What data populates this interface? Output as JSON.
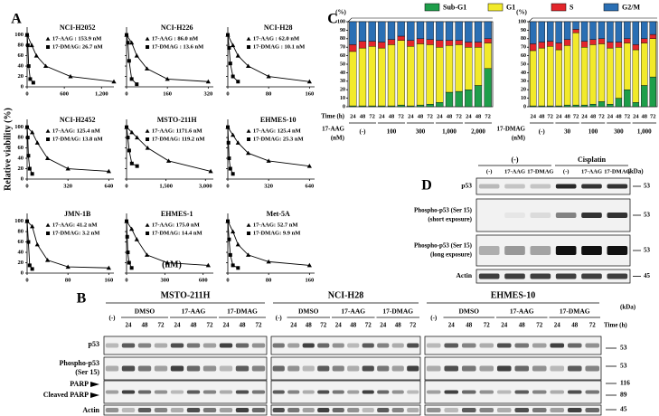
{
  "panel_a": {
    "label": "A",
    "ylabel": "Relative viability (%)",
    "xlabel": "(nM)",
    "ylim": [
      0,
      115
    ],
    "yticks": [
      0,
      20,
      40,
      60,
      80,
      100
    ],
    "charts": [
      {
        "type": "line",
        "title": "NCI-H2052",
        "xlim": [
          0,
          1400
        ],
        "xticks": [
          0,
          600,
          {
            "value": 1200,
            "label": "1,200"
          }
        ],
        "series": [
          {
            "label": "17-AAG : 153.9 nM",
            "marker": "triangle",
            "color": "#000000",
            "x": [
              0,
              75,
              150,
              300,
              700,
              1400
            ],
            "y": [
              100,
              80,
              60,
              40,
              20,
              10
            ]
          },
          {
            "label": "17-DMAG: 26.7 nM",
            "marker": "square",
            "color": "#000000",
            "x": [
              0,
              12,
              25,
              50,
              100
            ],
            "y": [
              100,
              80,
              40,
              15,
              8
            ]
          }
        ]
      },
      {
        "type": "line",
        "title": "NCI-H226",
        "xlim": [
          0,
          340
        ],
        "xticks": [
          0,
          160,
          320
        ],
        "series": [
          {
            "label": "17-AAG : 86.0 nM",
            "marker": "triangle",
            "color": "#000000",
            "x": [
              0,
              20,
              40,
              80,
              160,
              320
            ],
            "y": [
              100,
              85,
              60,
              35,
              15,
              10
            ]
          },
          {
            "label": "17-DMAG : 13.6 nM",
            "marker": "square",
            "color": "#000000",
            "x": [
              0,
              5,
              10,
              20,
              40
            ],
            "y": [
              100,
              85,
              50,
              15,
              5
            ]
          }
        ]
      },
      {
        "type": "line",
        "title": "NCI-H28",
        "xlim": [
          0,
          170
        ],
        "xticks": [
          0,
          80,
          160
        ],
        "series": [
          {
            "label": "17-AAG : 62.0 nM",
            "marker": "triangle",
            "color": "#000000",
            "x": [
              0,
              10,
              20,
              40,
              80,
              160
            ],
            "y": [
              100,
              80,
              60,
              40,
              20,
              10
            ]
          },
          {
            "label": "17-DMAG : 10.1 nM",
            "marker": "square",
            "color": "#000000",
            "x": [
              0,
              2.5,
              5,
              10,
              20
            ],
            "y": [
              100,
              75,
              45,
              20,
              10
            ]
          }
        ]
      },
      {
        "type": "line",
        "title": "NCI-H2452",
        "xlim": [
          0,
          680
        ],
        "xticks": [
          0,
          320,
          640
        ],
        "series": [
          {
            "label": "17-AAG: 125.4 nM",
            "marker": "triangle",
            "color": "#000000",
            "x": [
              0,
              40,
              80,
              160,
              320,
              640
            ],
            "y": [
              100,
              90,
              70,
              40,
              20,
              15
            ]
          },
          {
            "label": "17-DMAG: 13.8 nM",
            "marker": "square",
            "color": "#000000",
            "x": [
              0,
              5,
              10,
              20,
              40
            ],
            "y": [
              100,
              80,
              45,
              20,
              10
            ]
          }
        ]
      },
      {
        "type": "line",
        "title": "MSTO-211H",
        "xlim": [
          0,
          3300
        ],
        "xticks": [
          0,
          {
            "value": 1500,
            "label": "1,500"
          },
          {
            "value": 3000,
            "label": "3,000"
          }
        ],
        "series": [
          {
            "label": "17-AAG: 1171.6 nM",
            "marker": "triangle",
            "color": "#000000",
            "x": [
              0,
              200,
              400,
              800,
              1600,
              3200
            ],
            "y": [
              100,
              90,
              80,
              60,
              35,
              15
            ]
          },
          {
            "label": "17-DMAG: 119.2 nM",
            "marker": "square",
            "color": "#000000",
            "x": [
              0,
              50,
              100,
              200,
              400
            ],
            "y": [
              100,
              80,
              55,
              30,
              25
            ]
          }
        ]
      },
      {
        "type": "line",
        "title": "EHMES-10",
        "xlim": [
          0,
          680
        ],
        "xticks": [
          0,
          320,
          640
        ],
        "series": [
          {
            "label": "17-AAG: 125.4 nM",
            "marker": "triangle",
            "color": "#000000",
            "x": [
              0,
              40,
              80,
              160,
              320,
              640
            ],
            "y": [
              100,
              85,
              70,
              50,
              35,
              25
            ]
          },
          {
            "label": "17-DMAG: 25.3 nM",
            "marker": "square",
            "color": "#000000",
            "x": [
              0,
              5,
              10,
              20,
              40
            ],
            "y": [
              100,
              70,
              40,
              20,
              10
            ]
          }
        ]
      },
      {
        "type": "line",
        "title": "JMN-1B",
        "xlim": [
          0,
          170
        ],
        "xticks": [
          0,
          80,
          160
        ],
        "series": [
          {
            "label": "17-AAG: 41.2 nM",
            "marker": "triangle",
            "color": "#000000",
            "x": [
              0,
              10,
              20,
              40,
              80,
              160
            ],
            "y": [
              100,
              90,
              55,
              25,
              12,
              10
            ]
          },
          {
            "label": "17-DMAG: 3.2 nM",
            "marker": "square",
            "color": "#000000",
            "x": [
              0,
              2.5,
              5,
              10
            ],
            "y": [
              100,
              60,
              15,
              8
            ]
          }
        ]
      },
      {
        "type": "line",
        "title": "EHMES-1",
        "xlim": [
          0,
          680
        ],
        "xticks": [
          0,
          300,
          600
        ],
        "series": [
          {
            "label": "17-AAG: 175.0 nM",
            "marker": "triangle",
            "color": "#000000",
            "x": [
              0,
              40,
              80,
              160,
              320,
              640
            ],
            "y": [
              100,
              85,
              65,
              35,
              20,
              15
            ]
          },
          {
            "label": "17-DMAG: 14.4 nM",
            "marker": "square",
            "color": "#000000",
            "x": [
              0,
              5,
              10,
              20,
              40
            ],
            "y": [
              100,
              70,
              40,
              20,
              10
            ]
          }
        ]
      },
      {
        "type": "line",
        "title": "Met-5A",
        "xlim": [
          0,
          170
        ],
        "xticks": [
          0,
          80,
          160
        ],
        "series": [
          {
            "label": "17-AAG: 52.7 nM",
            "marker": "triangle",
            "color": "#000000",
            "x": [
              0,
              10,
              20,
              40,
              80,
              160
            ],
            "y": [
              100,
              80,
              55,
              35,
              22,
              15
            ]
          },
          {
            "label": "17-DMAG: 9.9 nM",
            "marker": "square",
            "color": "#000000",
            "x": [
              0,
              2.5,
              5,
              10,
              20
            ],
            "y": [
              100,
              65,
              35,
              15,
              10
            ]
          }
        ]
      }
    ]
  },
  "panel_b": {
    "label": "B",
    "cell_lines": [
      "MSTO-211H",
      "NCI-H28",
      "EHMES-10"
    ],
    "untreated": "(-)",
    "treatments": [
      "DMSO",
      "17-AAG",
      "17-DMAG"
    ],
    "times": [
      24,
      48,
      72
    ],
    "time_label": "Time (h)",
    "rows": [
      "p53",
      "Phospho-p53",
      "(Ser 15)",
      "PARP",
      "Cleaved PARP",
      "Actin"
    ],
    "kda_label": "(kDa)",
    "kda": [
      53,
      53,
      116,
      89,
      45
    ]
  },
  "panel_c": {
    "label": "C",
    "y_unit": "(%)",
    "time_label": "Time (h)",
    "legend": [
      {
        "name": "Sub-G1",
        "color": "#1e9e4a"
      },
      {
        "name": "G1",
        "color": "#f2ea2a"
      },
      {
        "name": "S",
        "color": "#e3262b"
      },
      {
        "name": "G2/M",
        "color": "#2a6fb4"
      }
    ],
    "charts": [
      {
        "type": "bar",
        "stacked": true,
        "ylim": [
          0,
          100
        ],
        "yticks": [
          0,
          10,
          20,
          30,
          40,
          50,
          60,
          70,
          80,
          90,
          100
        ],
        "categories": [
          24,
          48,
          72,
          24,
          48,
          72,
          24,
          48,
          72,
          24,
          48,
          72,
          24,
          48,
          72
        ],
        "groups": [
          "(-)",
          "100",
          "300",
          "1,000",
          "2,000"
        ],
        "group_title": [
          "17-AAG",
          "(nM)"
        ],
        "series": [
          {
            "values": [
              1,
              1,
              1,
              1,
              1,
              2,
              1,
              2,
              3,
              5,
              17,
              18,
              20,
              25,
              45
            ]
          },
          {
            "values": [
              64,
              68,
              70,
              68,
              72,
              76,
              70,
              72,
              70,
              65,
              55,
              55,
              50,
              45,
              30
            ]
          },
          {
            "values": [
              8,
              8,
              6,
              7,
              6,
              5,
              7,
              6,
              6,
              8,
              6,
              5,
              6,
              6,
              5
            ]
          },
          {
            "values": [
              27,
              23,
              23,
              24,
              21,
              17,
              22,
              20,
              21,
              22,
              22,
              22,
              24,
              24,
              20
            ]
          }
        ]
      },
      {
        "type": "bar",
        "stacked": true,
        "ylim": [
          0,
          100
        ],
        "yticks": [
          0,
          10,
          20,
          30,
          40,
          50,
          60,
          70,
          80,
          90,
          100
        ],
        "categories": [
          24,
          48,
          72,
          24,
          48,
          72,
          24,
          48,
          72,
          24,
          48,
          72,
          24,
          48,
          72
        ],
        "groups": [
          "(-)",
          "30",
          "100",
          "300",
          "1,000"
        ],
        "group_title": [
          "17-DMAG",
          "(nM)"
        ],
        "series": [
          {
            "values": [
              1,
              1,
              1,
              1,
              2,
              2,
              2,
              3,
              6,
              3,
              10,
              20,
              5,
              25,
              35
            ]
          },
          {
            "values": [
              65,
              68,
              70,
              66,
              70,
              85,
              68,
              70,
              68,
              66,
              60,
              55,
              62,
              50,
              45
            ]
          },
          {
            "values": [
              8,
              7,
              6,
              8,
              7,
              4,
              7,
              6,
              6,
              7,
              6,
              5,
              6,
              5,
              5
            ]
          },
          {
            "values": [
              26,
              24,
              23,
              25,
              21,
              9,
              23,
              21,
              20,
              24,
              24,
              20,
              27,
              20,
              15
            ]
          }
        ]
      }
    ]
  },
  "panel_d": {
    "label": "D",
    "conditions": [
      "(-)",
      "Cisplatin"
    ],
    "lanes": [
      "(-)",
      "17-AAG",
      "17-DMAG"
    ],
    "kda_label": "(kDa)",
    "rows": [
      {
        "name": "p53"
      },
      {
        "name": "Phospho-p53 (Ser 15)",
        "note": "(short exposure)"
      },
      {
        "name": "Phospho-p53 (Ser 15)",
        "note": "(long exposure)"
      },
      {
        "name": "Actin"
      }
    ],
    "kda": [
      53,
      53,
      53,
      45
    ]
  }
}
